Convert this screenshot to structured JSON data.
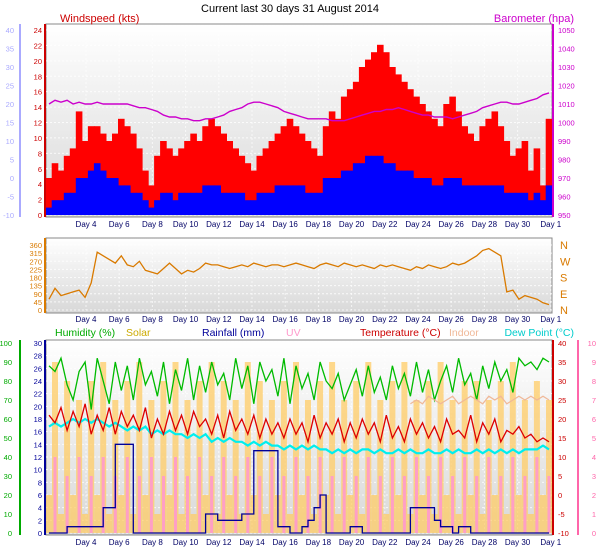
{
  "title": "Current last 30 days 31 August 2014",
  "colors": {
    "wind_gust": "#ff0000",
    "wind_avg": "#0000ff",
    "wind_dir": "#d97a00",
    "barometer": "#cc00cc",
    "temp_right_axis": "#ff66aa",
    "humidity": "#00bb00",
    "solar": "#ffcc66",
    "rain": "#000099",
    "uv": "#ff99cc",
    "temperature": "#dd0000",
    "indoor": "#f0b898",
    "dewpoint": "#00eeee",
    "wind_axis": "#9999ff",
    "left_axis": "#aaaaff"
  },
  "chart_data": [
    {
      "type": "bar",
      "name": "wind-panel",
      "labels": {
        "windspeed": "Windspeed (kts)",
        "barometer": "Barometer (hpa)"
      },
      "x_ticks": [
        "Day 4",
        "Day 6",
        "Day 8",
        "Day 10",
        "Day 12",
        "Day 14",
        "Day 16",
        "Day 18",
        "Day 20",
        "Day 22",
        "Day 24",
        "Day 26",
        "Day 28",
        "Day 30",
        "Day 1"
      ],
      "left_ticks": [
        "24",
        "22",
        "20",
        "18",
        "16",
        "14",
        "12",
        "10",
        "8",
        "6",
        "4",
        "2",
        "0"
      ],
      "outer_ticks": [
        "40",
        "35",
        "30",
        "25",
        "20",
        "15",
        "10",
        "5",
        "0",
        "-5",
        "-10"
      ],
      "right_ticks": [
        "1050",
        "1040",
        "1030",
        "1020",
        "1010",
        "1000",
        "990",
        "980",
        "970",
        "960",
        "950"
      ],
      "ylim": [
        0,
        25
      ],
      "baro_lim": [
        950,
        1050
      ],
      "series": [
        {
          "key": "gust",
          "values": [
            5,
            7,
            6,
            8,
            9,
            14,
            10,
            12,
            12,
            11,
            10,
            11,
            13,
            12,
            11,
            9,
            6,
            4,
            8,
            10,
            9,
            8,
            9,
            10,
            11,
            10,
            12,
            13,
            12,
            11,
            10,
            9,
            8,
            7,
            6,
            8,
            9,
            10,
            11,
            12,
            13,
            12,
            11,
            10,
            9,
            8,
            12,
            14,
            13,
            16,
            17,
            18,
            20,
            21,
            22,
            23,
            22,
            20,
            19,
            18,
            17,
            16,
            15,
            14,
            13,
            12,
            15,
            16,
            14,
            12,
            11,
            10,
            12,
            13,
            14,
            12,
            10,
            8,
            9,
            10,
            6,
            9,
            4,
            13
          ]
        },
        {
          "key": "avg",
          "values": [
            1,
            2,
            2,
            3,
            3,
            5,
            5,
            6,
            7,
            6,
            5,
            5,
            4,
            4,
            3,
            3,
            2,
            1,
            2,
            3,
            3,
            2,
            3,
            3,
            3,
            3,
            4,
            4,
            4,
            3,
            3,
            3,
            3,
            2,
            2,
            3,
            3,
            3,
            4,
            4,
            4,
            4,
            4,
            3,
            3,
            3,
            5,
            5,
            5,
            6,
            6,
            7,
            7,
            8,
            8,
            8,
            7,
            7,
            6,
            6,
            6,
            5,
            5,
            5,
            4,
            4,
            5,
            5,
            5,
            4,
            4,
            4,
            4,
            4,
            4,
            4,
            3,
            3,
            3,
            3,
            2,
            3,
            2,
            4
          ]
        },
        {
          "key": "baro",
          "values": [
            1010,
            1012,
            1011,
            1012,
            1010,
            1011,
            1010,
            1010,
            1011,
            1010,
            1010,
            1010,
            1010,
            1010,
            1009,
            1008,
            1008,
            1007,
            1006,
            1004,
            1003,
            1003,
            1002,
            1002,
            1001,
            1001,
            1002,
            1002,
            1003,
            1004,
            1006,
            1007,
            1008,
            1010,
            1011,
            1011,
            1010,
            1009,
            1008,
            1006,
            1005,
            1004,
            1003,
            1002,
            1002,
            1002,
            1002,
            1001,
            1001,
            1001,
            1002,
            1003,
            1004,
            1005,
            1006,
            1006,
            1007,
            1007,
            1008,
            1007,
            1006,
            1005,
            1004,
            1004,
            1003,
            1003,
            1003,
            1002,
            1003,
            1004,
            1005,
            1006,
            1008,
            1009,
            1010,
            1011,
            1011,
            1010,
            1010,
            1011,
            1012,
            1013,
            1015,
            1016
          ]
        }
      ]
    },
    {
      "type": "line",
      "name": "direction-panel",
      "left_ticks": [
        "360",
        "315",
        "270",
        "225",
        "180",
        "135",
        "90",
        "45",
        "0"
      ],
      "right_ticks": [
        "N",
        "W",
        "S",
        "E",
        "N"
      ],
      "ylim": [
        0,
        360
      ],
      "series": [
        {
          "key": "dir",
          "values": [
            60,
            120,
            80,
            90,
            100,
            110,
            70,
            150,
            320,
            300,
            280,
            260,
            300,
            250,
            240,
            270,
            220,
            210,
            200,
            230,
            260,
            230,
            200,
            220,
            210,
            230,
            260,
            250,
            250,
            240,
            230,
            240,
            250,
            240,
            260,
            250,
            240,
            250,
            250,
            240,
            250,
            260,
            250,
            240,
            230,
            250,
            260,
            250,
            240,
            260,
            250,
            240,
            250,
            240,
            230,
            250,
            240,
            250,
            240,
            230,
            220,
            240,
            230,
            250,
            240,
            230,
            240,
            260,
            250,
            260,
            280,
            300,
            330,
            340,
            320,
            300,
            100,
            110,
            60,
            80,
            70,
            60,
            40,
            30
          ]
        }
      ]
    },
    {
      "type": "line",
      "name": "weather-panel",
      "labels": {
        "humidity": "Humidity (%)",
        "solar": "Solar",
        "rainfall": "Rainfall (mm)",
        "uv": "UV",
        "temperature": "Temperature (°C)",
        "indoor": "Indoor",
        "dewpoint": "Dew Point (°C)"
      },
      "humidity_ticks": [
        "100",
        "90",
        "80",
        "70",
        "60",
        "50",
        "40",
        "30",
        "20",
        "10",
        "0"
      ],
      "rain_ticks": [
        "30",
        "28",
        "26",
        "24",
        "22",
        "20",
        "18",
        "16",
        "14",
        "12",
        "10",
        "8",
        "6",
        "4",
        "2",
        "0"
      ],
      "temp_ticks": [
        "40",
        "35",
        "30",
        "25",
        "20",
        "15",
        "10",
        "5",
        "0",
        "-5",
        "-10"
      ],
      "uv_ticks": [
        "10",
        "9",
        "8",
        "7",
        "6",
        "5",
        "4",
        "3",
        "2",
        "1",
        "0"
      ],
      "temp_lim": [
        -10,
        40
      ],
      "rain_lim": [
        0,
        30
      ],
      "series": [
        {
          "key": "humidity",
          "values": [
            88,
            85,
            92,
            78,
            70,
            85,
            90,
            65,
            92,
            80,
            68,
            90,
            75,
            88,
            70,
            92,
            78,
            85,
            72,
            90,
            68,
            86,
            75,
            92,
            70,
            88,
            74,
            90,
            78,
            84,
            70,
            92,
            76,
            88,
            68,
            90,
            80,
            86,
            72,
            92,
            68,
            88,
            76,
            84,
            70,
            90,
            80,
            76,
            84,
            70,
            78,
            86,
            72,
            88,
            74,
            82,
            70,
            88,
            76,
            84,
            72,
            90,
            74,
            86,
            70,
            80,
            88,
            74,
            92,
            78,
            84,
            70,
            88,
            76,
            90,
            80,
            86,
            74,
            92,
            88,
            90,
            86,
            92,
            90
          ]
        },
        {
          "key": "temperature",
          "values": [
            21,
            19,
            23,
            17,
            22,
            18,
            24,
            16,
            21,
            17,
            23,
            16,
            22,
            18,
            21,
            17,
            23,
            15,
            20,
            16,
            22,
            17,
            21,
            16,
            22,
            18,
            20,
            16,
            21,
            15,
            22,
            17,
            20,
            16,
            21,
            15,
            20,
            16,
            19,
            15,
            20,
            16,
            19,
            14,
            21,
            15,
            19,
            16,
            20,
            14,
            19,
            15,
            20,
            16,
            19,
            14,
            21,
            15,
            18,
            14,
            20,
            16,
            19,
            15,
            18,
            14,
            20,
            16,
            17,
            15,
            21,
            14,
            19,
            16,
            20,
            14,
            17,
            16,
            18,
            15,
            16,
            14,
            15,
            14
          ]
        },
        {
          "key": "indoor",
          "values": [
            null,
            null,
            null,
            null,
            null,
            null,
            null,
            null,
            null,
            null,
            null,
            null,
            null,
            null,
            null,
            null,
            null,
            null,
            null,
            null,
            null,
            null,
            null,
            null,
            null,
            null,
            null,
            null,
            null,
            null,
            null,
            null,
            null,
            null,
            null,
            null,
            null,
            null,
            null,
            null,
            null,
            null,
            null,
            null,
            null,
            null,
            null,
            null,
            null,
            null,
            null,
            null,
            null,
            null,
            null,
            null,
            null,
            null,
            null,
            null,
            24,
            25,
            24,
            26,
            25,
            24,
            25,
            26,
            24,
            25,
            26,
            25,
            24,
            26,
            25,
            26,
            24,
            25,
            26,
            25,
            26,
            25,
            26,
            25
          ]
        },
        {
          "key": "dewpoint",
          "values": [
            18,
            19,
            18,
            19,
            20,
            19,
            20,
            19,
            20,
            19,
            18,
            19,
            18,
            17,
            18,
            17,
            18,
            16,
            17,
            16,
            17,
            16,
            16,
            15,
            16,
            15,
            16,
            14,
            15,
            14,
            15,
            14,
            14,
            13,
            14,
            13,
            14,
            13,
            13,
            12,
            13,
            12,
            13,
            12,
            13,
            12,
            12,
            11,
            12,
            11,
            12,
            11,
            12,
            12,
            11,
            12,
            11,
            11,
            12,
            11,
            12,
            11,
            11,
            12,
            11,
            11,
            12,
            11,
            12,
            11,
            11,
            12,
            11,
            12,
            11,
            12,
            11,
            12,
            11,
            12,
            12,
            12,
            13,
            12
          ]
        },
        {
          "key": "rain",
          "values": [
            0,
            0,
            0,
            1,
            1,
            1,
            1,
            1,
            1,
            4,
            4,
            14,
            14,
            14,
            0,
            0,
            0,
            0,
            0,
            0,
            0,
            0,
            0,
            0,
            0,
            0,
            3,
            3,
            2,
            2,
            2,
            2,
            3,
            3,
            13,
            13,
            13,
            13,
            1,
            1,
            0,
            0,
            1,
            2,
            4,
            6,
            0,
            0,
            0,
            0,
            1,
            1,
            0,
            0,
            0,
            0,
            0,
            0,
            0,
            0,
            4,
            4,
            4,
            4,
            2,
            1,
            1,
            0,
            1,
            1,
            0,
            0,
            0,
            0,
            0,
            0,
            0,
            0,
            0,
            0,
            0,
            0,
            0,
            0
          ]
        },
        {
          "key": "solar",
          "values": [
            2,
            9,
            1,
            8,
            2,
            7,
            1,
            8,
            2,
            9,
            1,
            7,
            2,
            8,
            1,
            9,
            2,
            7,
            1,
            8,
            2,
            9,
            1,
            7,
            1,
            8,
            2,
            9,
            1,
            8,
            2,
            7,
            1,
            9,
            2,
            8,
            1,
            7,
            2,
            8,
            1,
            9,
            2,
            7,
            1,
            8,
            2,
            9,
            1,
            7,
            2,
            8,
            1,
            9,
            2,
            7,
            1,
            8,
            2,
            9,
            1,
            7,
            2,
            8,
            1,
            9,
            2,
            7,
            1,
            8,
            2,
            8,
            1,
            7,
            2,
            8,
            1,
            9,
            2,
            7,
            1,
            8,
            2,
            7
          ]
        },
        {
          "key": "uv",
          "values": [
            0,
            4,
            0,
            3,
            0,
            4,
            0,
            3,
            0,
            4,
            0,
            3,
            0,
            4,
            0,
            3,
            0,
            4,
            0,
            3,
            0,
            4,
            0,
            3,
            0,
            4,
            0,
            3,
            0,
            4,
            0,
            3,
            0,
            4,
            0,
            3,
            0,
            4,
            0,
            3,
            0,
            4,
            0,
            3,
            0,
            4,
            0,
            3,
            0,
            4,
            0,
            3,
            0,
            4,
            0,
            3,
            0,
            4,
            0,
            3,
            0,
            4,
            0,
            3,
            0,
            4,
            0,
            3,
            0,
            4,
            0,
            3,
            0,
            4,
            0,
            3,
            0,
            4,
            0,
            3,
            0,
            4,
            0,
            3
          ]
        }
      ]
    }
  ]
}
